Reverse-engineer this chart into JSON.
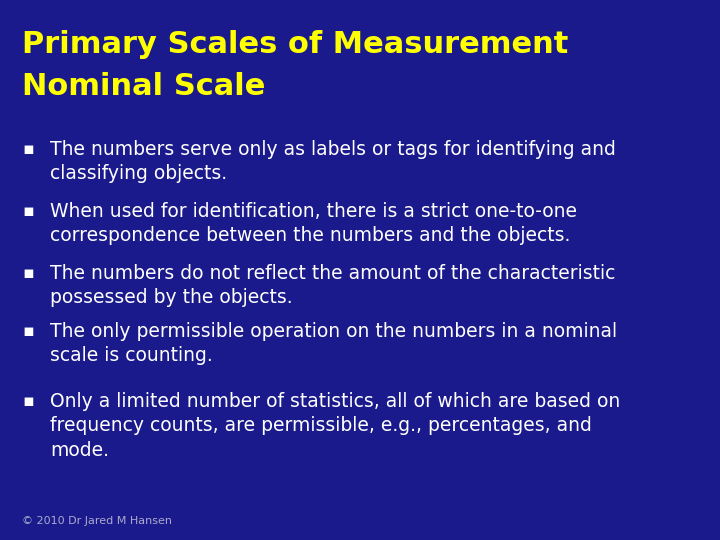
{
  "background_color": "#1a1a8c",
  "title_line1": "Primary Scales of Measurement",
  "title_line2": "Nominal Scale",
  "title_color": "#ffff00",
  "title_fontsize": 22,
  "title_fontweight": "bold",
  "bullet_color": "#ffffff",
  "bullet_fontsize": 13.5,
  "bullet_symbol": "▪",
  "bullet_symbol_color": "#ffffff",
  "footer_text": "© 2010 Dr Jared M Hansen",
  "footer_color": "#aaaacc",
  "footer_fontsize": 8,
  "bullets": [
    "The numbers serve only as labels or tags for identifying and\nclassifying objects.",
    "When used for identification, there is a strict one-to-one\ncorrespondence between the numbers and the objects.",
    "The numbers do not reflect the amount of the characteristic\npossessed by the objects.",
    "The only permissible operation on the numbers in a nominal\nscale is counting.",
    "Only a limited number of statistics, all of which are based on\nfrequency counts, are permissible, e.g., percentages, and\nmode."
  ]
}
